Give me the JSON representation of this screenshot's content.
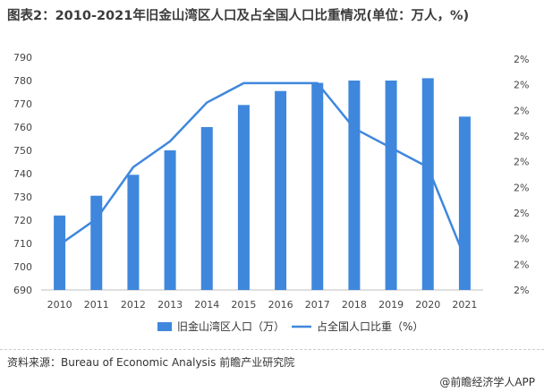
{
  "title": "图表2：2010-2021年旧金山湾区人口及占全国人口比重情况(单位：万人，%)",
  "source": "资料来源：Bureau of Economic Analysis 前瞻产业研究院",
  "credit": "@前瞻经济学人APP",
  "colors": {
    "bar": "#3f87dd",
    "line": "#3f87dd",
    "axis": "#bfbfbf"
  },
  "chart_data": {
    "type": "bar",
    "categories": [
      "2010",
      "2011",
      "2012",
      "2013",
      "2014",
      "2015",
      "2016",
      "2017",
      "2018",
      "2019",
      "2020",
      "2021"
    ],
    "series": [
      {
        "name": "旧金山湾区人口（万）",
        "type": "bar",
        "axis": "left",
        "values": [
          722,
          730.5,
          739.5,
          750,
          760,
          769.5,
          775.5,
          779,
          780,
          780,
          781,
          764.5
        ]
      },
      {
        "name": "占全国人口比重（%）",
        "type": "line",
        "axis": "right",
        "values": [
          2.335,
          2.339,
          2.347,
          2.351,
          2.357,
          2.36,
          2.36,
          2.36,
          2.353,
          2.35,
          2.347,
          2.333
        ]
      }
    ],
    "y_left": {
      "min": 690,
      "max": 790,
      "ticks": [
        "690",
        "700",
        "710",
        "720",
        "730",
        "740",
        "750",
        "760",
        "770",
        "780",
        "790"
      ]
    },
    "y_right": {
      "min": 2.328,
      "max": 2.364,
      "tick_label": "2%",
      "tick_count": 10
    },
    "xlabel": "",
    "ylabel": "",
    "grid": false,
    "legend": "bottom-center"
  }
}
